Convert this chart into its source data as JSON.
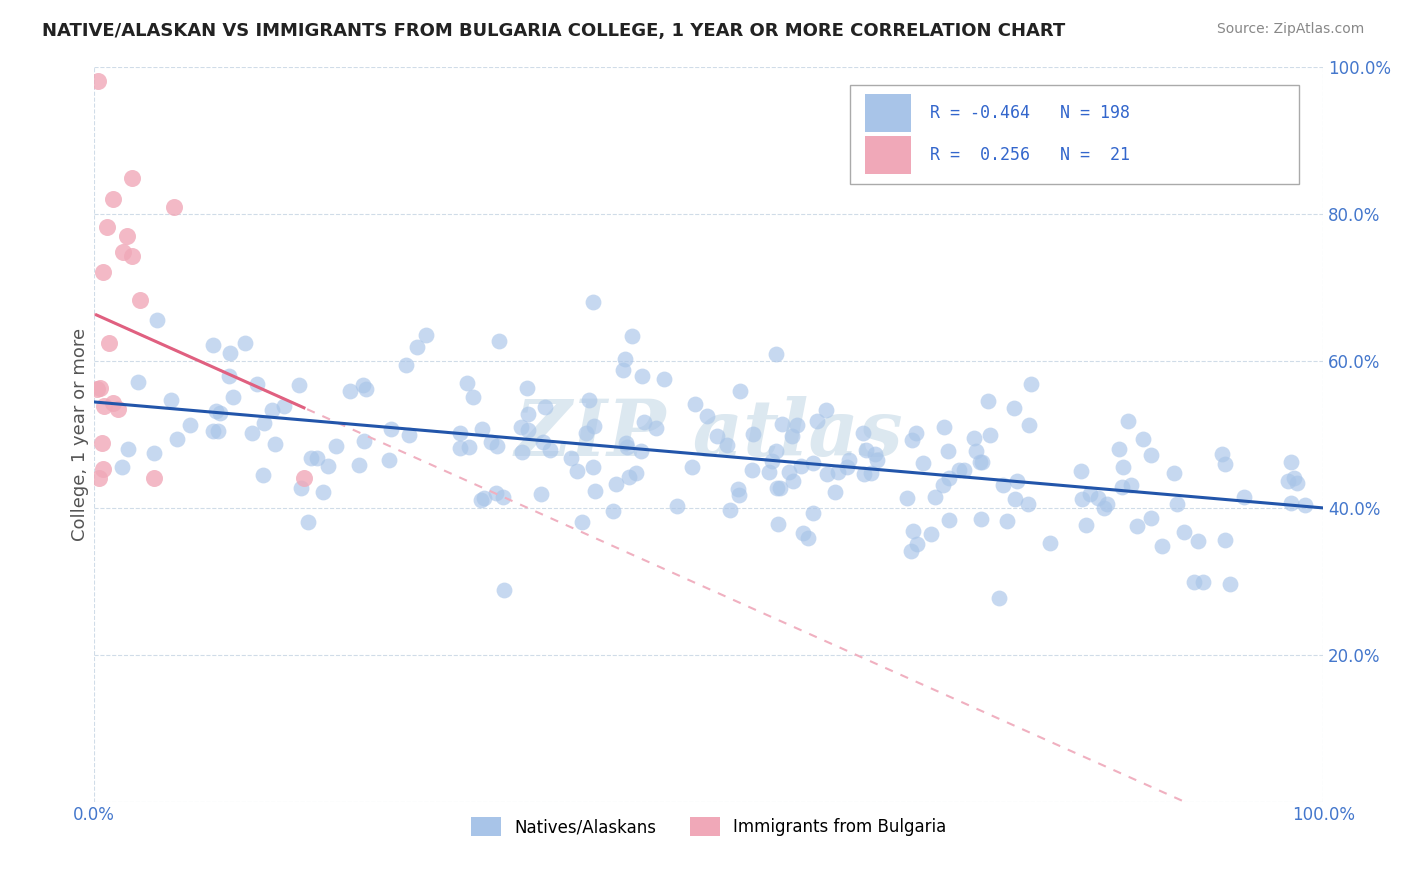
{
  "title": "NATIVE/ALASKAN VS IMMIGRANTS FROM BULGARIA COLLEGE, 1 YEAR OR MORE CORRELATION CHART",
  "source": "Source: ZipAtlas.com",
  "ylabel": "College, 1 year or more",
  "blue_R": -0.464,
  "blue_N": 198,
  "pink_R": 0.256,
  "pink_N": 21,
  "legend_label_blue": "Natives/Alaskans",
  "legend_label_pink": "Immigrants from Bulgaria",
  "blue_color": "#a8c4e8",
  "pink_color": "#f0a8b8",
  "blue_line_color": "#2255aa",
  "pink_line_color": "#e06080",
  "pink_line_dashed_color": "#f0b0c0",
  "background_color": "#ffffff",
  "watermark_color": "#dce8f0",
  "y_ticks": [
    0.0,
    0.2,
    0.4,
    0.6,
    0.8,
    1.0
  ],
  "y_tick_labels_right": [
    "",
    "20.0%",
    "40.0%",
    "60.0%",
    "80.0%",
    "100.0%"
  ],
  "grid_color": "#d0dce8",
  "title_color": "#222222",
  "source_color": "#888888",
  "tick_color": "#4477cc",
  "legend_text_color": "#3366cc",
  "seed": 123
}
